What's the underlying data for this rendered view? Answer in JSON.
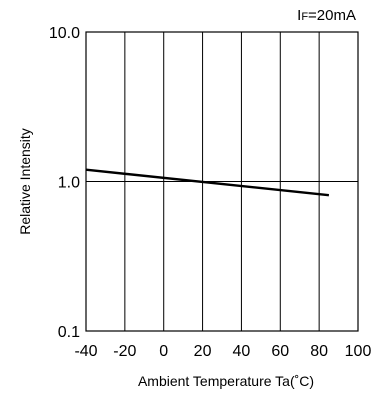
{
  "chart_data": {
    "type": "line",
    "condition": {
      "prefix": "I",
      "sub": "F",
      "suffix": "=20mA"
    },
    "xlabel": "Ambient Temperature  Ta(˚C)",
    "ylabel": "Relative Intensity",
    "x_ticks": [
      -40,
      -20,
      0,
      20,
      40,
      60,
      80,
      100
    ],
    "x_tick_labels": [
      "-40",
      "-20",
      "0",
      "20",
      "40",
      "60",
      "80",
      "100"
    ],
    "y_ticks": [
      0.1,
      1.0,
      10.0
    ],
    "y_tick_labels": [
      "0.1",
      "1.0",
      "10.0"
    ],
    "xlim": [
      -40,
      100
    ],
    "ylim": [
      0.1,
      10.0
    ],
    "y_scale": "log",
    "grid": true,
    "series": [
      {
        "x": [
          -40,
          85
        ],
        "y": [
          1.2,
          0.81
        ]
      }
    ],
    "colors": {
      "line": "#000000",
      "grid": "#000000",
      "background": "#ffffff"
    }
  }
}
